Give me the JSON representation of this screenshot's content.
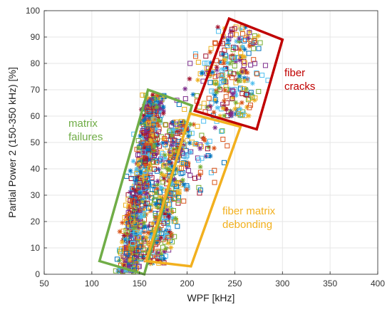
{
  "chart_data": {
    "type": "scatter",
    "title": "",
    "xlabel": "WPF [kHz]",
    "ylabel": "Partial Power 2 (150-350 kHz) [%]",
    "xlim": [
      50,
      400
    ],
    "ylim": [
      0,
      100
    ],
    "xticks": [
      50,
      100,
      150,
      200,
      250,
      300,
      350,
      400
    ],
    "yticks": [
      0,
      10,
      20,
      30,
      40,
      50,
      60,
      70,
      80,
      90,
      100
    ],
    "grid": true,
    "legend": "none",
    "series_colors": [
      "#0072BD",
      "#D95319",
      "#EDB120",
      "#7E2F8E",
      "#77AC30",
      "#4DBEEE",
      "#A2142F"
    ],
    "clusters": [
      {
        "label": "matrix failures",
        "label_lines": [
          "matrix",
          "failures"
        ],
        "color": "#70AD47",
        "box_corners": [
          [
            108,
            5
          ],
          [
            155,
            0
          ],
          [
            205,
            64
          ],
          [
            159,
            70
          ]
        ]
      },
      {
        "label": "fiber matrix debonding",
        "label_lines": [
          "fiber matrix",
          "debonding"
        ],
        "color": "#F2B01E",
        "box_corners": [
          [
            157,
            5
          ],
          [
            204,
            3
          ],
          [
            256,
            56
          ],
          [
            203,
            61
          ]
        ]
      },
      {
        "label": "fiber cracks",
        "label_lines": [
          "fiber",
          "cracks"
        ],
        "color": "#C00000",
        "box_corners": [
          [
            244,
            97
          ],
          [
            300,
            89
          ],
          [
            273,
            55
          ],
          [
            208,
            62
          ]
        ]
      }
    ],
    "point_clouds": [
      {
        "name": "",
        "x_mean": 152,
        "x_std": 8,
        "y_min": 1,
        "y_max": 68,
        "count": 900,
        "x_slope": 0.45
      },
      {
        "name": "",
        "x_mean": 178,
        "x_std": 12,
        "y_min": 4,
        "y_max": 58,
        "count": 450,
        "x_slope": 0.55
      },
      {
        "name": "",
        "x_mean": 252,
        "x_std": 18,
        "y_min": 60,
        "y_max": 94,
        "count": 220,
        "x_slope": 0.2
      },
      {
        "name": "",
        "x_mean": 215,
        "x_std": 20,
        "y_min": 30,
        "y_max": 85,
        "count": 120,
        "x_slope": 0.4
      }
    ]
  }
}
